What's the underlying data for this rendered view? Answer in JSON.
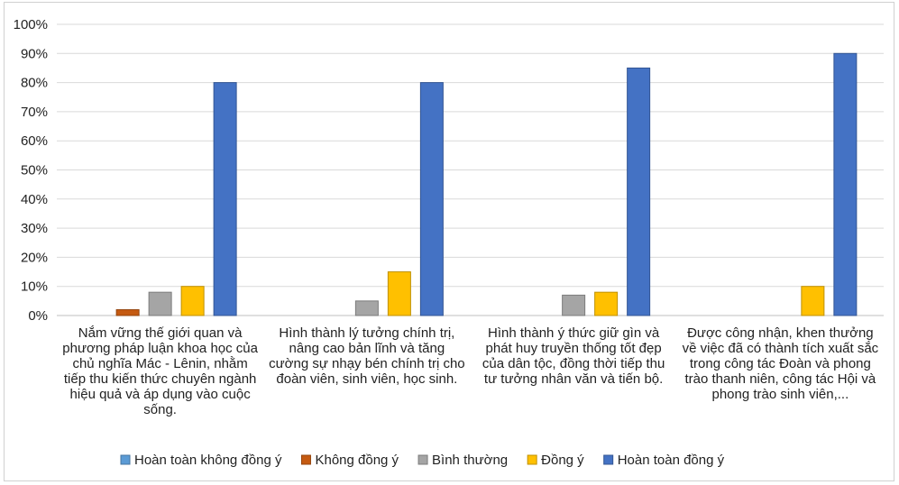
{
  "chart_data": {
    "type": "bar",
    "title": "",
    "xlabel": "",
    "ylabel": "",
    "ylim": [
      0,
      1
    ],
    "yticks": [
      "0%",
      "10%",
      "20%",
      "30%",
      "40%",
      "50%",
      "60%",
      "70%",
      "80%",
      "90%",
      "100%"
    ],
    "grid": true,
    "legend_position": "bottom",
    "categories": [
      [
        "Nắm vững thế giới quan và",
        "phương pháp luận khoa học của",
        "chủ nghĩa Mác - Lênin, nhằm",
        "tiếp thu kiến thức chuyên ngành",
        "hiệu quả và áp dụng vào cuộc",
        "sống."
      ],
      [
        "Hình thành lý tưởng chính trị,",
        "nâng cao bản lĩnh và tăng",
        "cường sự nhạy bén chính trị cho",
        "đoàn viên, sinh viên, học sinh."
      ],
      [
        "Hình thành ý thức giữ gìn và",
        "phát huy truyền thống tốt đẹp",
        "của dân tộc, đồng thời tiếp thu",
        "tư tưởng nhân văn và tiến bộ."
      ],
      [
        "Được công nhận, khen thưởng",
        "về việc đã có thành tích xuất sắc",
        "trong công tác Đoàn và phong",
        "trào thanh niên, công tác Hội và",
        "phong trào sinh viên,..."
      ]
    ],
    "series": [
      {
        "name": "Hoàn toàn không đồng ý",
        "color": "#5b9bd5",
        "values": [
          0,
          0,
          0,
          0
        ]
      },
      {
        "name": "Không đồng ý",
        "color": "#c55a11",
        "values": [
          0.02,
          0,
          0,
          0
        ]
      },
      {
        "name": "Bình thường",
        "color": "#a5a5a5",
        "values": [
          0.08,
          0.05,
          0.07,
          0
        ]
      },
      {
        "name": "Đồng ý",
        "color": "#ffc000",
        "values": [
          0.1,
          0.15,
          0.08,
          0.1
        ]
      },
      {
        "name": "Hoàn toàn đồng ý",
        "color": "#4472c4",
        "values": [
          0.8,
          0.8,
          0.85,
          0.9
        ]
      }
    ]
  }
}
